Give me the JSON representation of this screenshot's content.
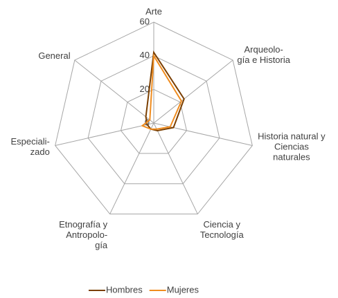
{
  "chart_data": {
    "type": "radar",
    "categories": [
      "Arte",
      "Arqueolo-\ngía e Historia",
      "Historia natural y\nCiencias\nnaturales",
      "Ciencia y\nTecnología",
      "Etnografía y\nAntropolo-\ngía",
      "Especiali-\nzado",
      "General"
    ],
    "series": [
      {
        "name": "Hombres",
        "color": "#7b3f00",
        "values": [
          42,
          23,
          12,
          5,
          4,
          4,
          6
        ]
      },
      {
        "name": "Mujeres",
        "color": "#f08c1e",
        "values": [
          40,
          21,
          10,
          4,
          4,
          7,
          3
        ]
      }
    ],
    "ylim": [
      0,
      60
    ],
    "yticks": [
      0,
      20,
      40,
      60
    ],
    "grid": true,
    "legend": "bottom"
  }
}
